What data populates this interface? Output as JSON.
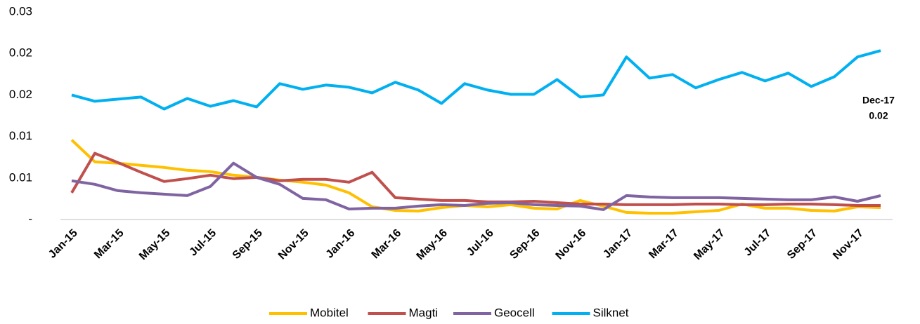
{
  "chart_data": {
    "type": "line",
    "categories": [
      "Jan-15",
      null,
      "Mar-15",
      null,
      "May-15",
      null,
      "Jul-15",
      null,
      "Sep-15",
      null,
      "Nov-15",
      null,
      "Jan-16",
      null,
      "Mar-16",
      null,
      "May-16",
      null,
      "Jul-16",
      null,
      "Sep-16",
      null,
      "Nov-16",
      null,
      "Jan-17",
      null,
      "Mar-17",
      null,
      "May-17",
      null,
      "Jul-17",
      null,
      "Sep-17",
      null,
      "Nov-17",
      null
    ],
    "series": [
      {
        "name": "Mobitel",
        "color": "#ffc000",
        "values": [
          0.00958,
          0.00695,
          0.00678,
          0.00653,
          0.00627,
          0.00593,
          0.00576,
          0.00534,
          0.00508,
          0.00475,
          0.00449,
          0.00415,
          0.00322,
          0.00153,
          0.0011,
          0.00102,
          0.00144,
          0.00169,
          0.00153,
          0.00178,
          0.00136,
          0.00127,
          0.00229,
          0.00161,
          0.00085,
          0.00076,
          0.00076,
          0.00093,
          0.0011,
          0.00186,
          0.00136,
          0.00136,
          0.0011,
          0.00102,
          0.00153,
          0.00144
        ]
      },
      {
        "name": "Magti",
        "color": "#c0504d",
        "values": [
          0.00322,
          0.00797,
          0.00686,
          0.00568,
          0.00458,
          0.00492,
          0.00534,
          0.00492,
          0.00508,
          0.00466,
          0.00483,
          0.00483,
          0.00449,
          0.00568,
          0.00263,
          0.00246,
          0.00229,
          0.00229,
          0.00212,
          0.00212,
          0.0022,
          0.00203,
          0.00186,
          0.00186,
          0.00178,
          0.00178,
          0.00178,
          0.00186,
          0.00186,
          0.00178,
          0.00178,
          0.00186,
          0.00186,
          0.00178,
          0.00169,
          0.00169
        ]
      },
      {
        "name": "Geocell",
        "color": "#8064a2",
        "values": [
          0.00466,
          0.00424,
          0.00347,
          0.00322,
          0.00305,
          0.00288,
          0.00398,
          0.00678,
          0.00508,
          0.00424,
          0.00254,
          0.00237,
          0.00127,
          0.00136,
          0.00136,
          0.00161,
          0.00178,
          0.00169,
          0.00195,
          0.00203,
          0.00178,
          0.00169,
          0.00161,
          0.00119,
          0.00288,
          0.00271,
          0.00263,
          0.00263,
          0.00263,
          0.00254,
          0.00246,
          0.00237,
          0.00237,
          0.00271,
          0.0022,
          0.00288
        ]
      },
      {
        "name": "Silknet",
        "color": "#00b0f0",
        "values": [
          0.015,
          0.01424,
          0.01449,
          0.01475,
          0.0133,
          0.01458,
          0.01364,
          0.01432,
          0.01356,
          0.01636,
          0.01568,
          0.01619,
          0.01593,
          0.01525,
          0.01653,
          0.01559,
          0.01398,
          0.01636,
          0.01559,
          0.01508,
          0.01508,
          0.01686,
          0.01475,
          0.015,
          0.01958,
          0.01703,
          0.01746,
          0.01585,
          0.01686,
          0.01771,
          0.01669,
          0.01763,
          0.01602,
          0.0172,
          0.01958,
          0.02034
        ]
      }
    ],
    "ylim": [
      0,
      0.025
    ],
    "yticks": [
      {
        "value": 0,
        "label": "-"
      },
      {
        "value": 0.005,
        "label": "0.01"
      },
      {
        "value": 0.01,
        "label": "0.01"
      },
      {
        "value": 0.015,
        "label": "0.02"
      },
      {
        "value": 0.02,
        "label": "0.02"
      },
      {
        "value": 0.025,
        "label": "0.03"
      }
    ],
    "annotation": {
      "category": "Dec-17",
      "value_label": "0.02"
    },
    "legend": "bottom"
  }
}
